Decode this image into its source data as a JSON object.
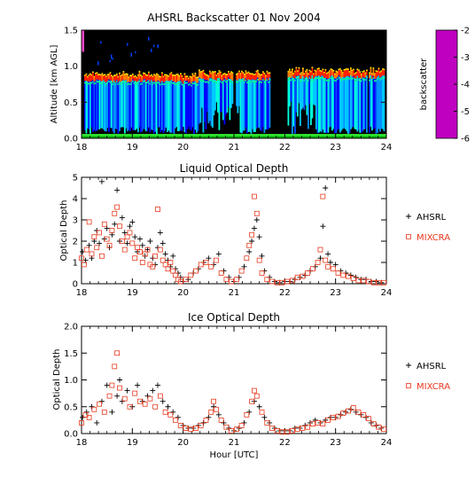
{
  "chart_data": [
    {
      "type": "heatmap",
      "title": "AHSRL Backscatter 01 Nov 2004",
      "xlabel": "",
      "ylabel": "Altitude [km AGL]",
      "xlim": [
        18,
        24
      ],
      "ylim": [
        0,
        1.5
      ],
      "x_ticks": [
        18,
        19,
        20,
        21,
        22,
        23,
        24
      ],
      "y_ticks": [
        0.0,
        0.5,
        1.0,
        1.5
      ],
      "y_tick_labels": [
        "0.0",
        "0.5",
        "1.0",
        "1.5"
      ],
      "colorbar": {
        "label": "backscatter",
        "range": [
          -6,
          -2
        ],
        "ticks": [
          -2,
          -3,
          -4,
          -5,
          -6
        ],
        "colors": [
          "#c000c0",
          "#ff1493",
          "#ff0000",
          "#ff6600",
          "#ffbb00",
          "#ffff00",
          "#80ff00",
          "#00dd00",
          "#00ffcc",
          "#00c8ff",
          "#0080ff",
          "#0000ff",
          "#000070",
          "#000000"
        ]
      },
      "cloud_base_km": [
        {
          "start": 18.05,
          "end": 19.95,
          "base": 0.8
        },
        {
          "start": 19.95,
          "end": 20.3,
          "base": 0.78
        },
        {
          "start": 20.3,
          "end": 22.0,
          "base": 0.82
        },
        {
          "start": 22.0,
          "end": 23.95,
          "base": 0.85
        }
      ]
    },
    {
      "type": "scatter",
      "title": "Liquid Optical Depth",
      "xlabel": "",
      "ylabel": "Optical Depth",
      "xlim": [
        18,
        24
      ],
      "ylim": [
        0,
        5
      ],
      "x_ticks": [
        18,
        19,
        20,
        21,
        22,
        23,
        24
      ],
      "y_ticks": [
        0,
        1,
        2,
        3,
        4,
        5
      ],
      "y_tick_labels": [
        "0",
        "1",
        "2",
        "3",
        "4",
        "5"
      ],
      "legend_position": "right",
      "series": [
        {
          "name": "AHSRL",
          "marker": "plus",
          "color": "#000000",
          "x": [
            18.02,
            18.08,
            18.15,
            18.2,
            18.25,
            18.3,
            18.35,
            18.4,
            18.45,
            18.5,
            18.55,
            18.6,
            18.65,
            18.7,
            18.75,
            18.8,
            18.85,
            18.9,
            18.95,
            19.0,
            19.05,
            19.1,
            19.15,
            19.2,
            19.25,
            19.3,
            19.35,
            19.4,
            19.45,
            19.5,
            19.55,
            19.6,
            19.65,
            19.7,
            19.75,
            19.8,
            19.85,
            19.9,
            19.95,
            20.0,
            20.1,
            20.2,
            20.3,
            20.4,
            20.5,
            20.6,
            20.7,
            20.8,
            20.9,
            21.0,
            21.1,
            21.2,
            21.3,
            21.35,
            21.4,
            21.45,
            21.5,
            21.55,
            21.6,
            21.7,
            21.8,
            21.9,
            22.0,
            22.1,
            22.2,
            22.3,
            22.4,
            22.5,
            22.6,
            22.7,
            22.75,
            22.8,
            22.85,
            22.9,
            23.0,
            23.1,
            23.2,
            23.3,
            23.4,
            23.5,
            23.6,
            23.7,
            23.8,
            23.9
          ],
          "y": [
            1.5,
            1.1,
            1.8,
            1.2,
            2.0,
            2.5,
            1.9,
            4.8,
            2.1,
            2.6,
            1.7,
            2.3,
            2.8,
            4.4,
            2.0,
            3.1,
            2.4,
            1.9,
            2.7,
            2.9,
            2.2,
            1.5,
            2.1,
            1.8,
            1.3,
            1.6,
            2.0,
            1.2,
            0.9,
            1.7,
            2.4,
            1.9,
            1.4,
            1.1,
            0.8,
            1.3,
            0.7,
            0.5,
            0.3,
            0.1,
            0.2,
            0.5,
            0.7,
            1.0,
            1.2,
            0.9,
            1.4,
            0.6,
            0.3,
            0.1,
            0.3,
            0.8,
            1.5,
            2.0,
            2.6,
            3.0,
            2.2,
            1.3,
            0.6,
            0.3,
            0.1,
            0.05,
            0.1,
            0.1,
            0.2,
            0.3,
            0.4,
            0.6,
            0.8,
            1.2,
            2.7,
            4.5,
            1.4,
            1.0,
            0.9,
            0.6,
            0.5,
            0.4,
            0.3,
            0.2,
            0.2,
            0.1,
            0.1,
            0.05
          ]
        },
        {
          "name": "MIXCRA",
          "marker": "square",
          "color": "#e8391d",
          "x": [
            18.0,
            18.05,
            18.1,
            18.15,
            18.2,
            18.25,
            18.3,
            18.35,
            18.4,
            18.45,
            18.5,
            18.55,
            18.6,
            18.65,
            18.7,
            18.75,
            18.8,
            18.85,
            18.9,
            18.95,
            19.0,
            19.05,
            19.1,
            19.15,
            19.2,
            19.25,
            19.3,
            19.35,
            19.4,
            19.45,
            19.5,
            19.55,
            19.6,
            19.65,
            19.7,
            19.75,
            19.8,
            19.85,
            19.9,
            19.95,
            20.05,
            20.15,
            20.25,
            20.35,
            20.45,
            20.55,
            20.65,
            20.75,
            20.85,
            20.95,
            21.05,
            21.15,
            21.25,
            21.3,
            21.35,
            21.4,
            21.45,
            21.5,
            21.55,
            21.65,
            21.75,
            21.85,
            21.95,
            22.05,
            22.15,
            22.25,
            22.35,
            22.45,
            22.55,
            22.65,
            22.7,
            22.75,
            22.8,
            22.85,
            22.95,
            23.05,
            23.15,
            23.25,
            23.35,
            23.45,
            23.55,
            23.65,
            23.75,
            23.85,
            23.95
          ],
          "y": [
            1.2,
            0.9,
            1.6,
            2.9,
            1.4,
            2.2,
            1.7,
            2.4,
            1.3,
            2.8,
            2.1,
            1.8,
            2.5,
            3.3,
            3.6,
            2.7,
            2.0,
            1.6,
            2.2,
            2.4,
            1.9,
            1.2,
            1.7,
            1.5,
            1.0,
            1.4,
            1.6,
            0.9,
            0.8,
            1.3,
            3.5,
            1.6,
            1.1,
            0.9,
            0.7,
            1.0,
            0.6,
            0.4,
            0.2,
            0.1,
            0.2,
            0.4,
            0.6,
            0.9,
            1.0,
            0.8,
            1.1,
            0.5,
            0.2,
            0.1,
            0.2,
            0.6,
            1.2,
            1.8,
            2.3,
            4.1,
            3.3,
            1.1,
            0.5,
            0.2,
            0.1,
            0.05,
            0.05,
            0.1,
            0.15,
            0.3,
            0.35,
            0.5,
            0.7,
            1.0,
            1.6,
            4.1,
            1.1,
            0.8,
            0.7,
            0.5,
            0.4,
            0.35,
            0.25,
            0.15,
            0.15,
            0.1,
            0.05,
            0.05,
            0.05
          ]
        }
      ]
    },
    {
      "type": "scatter",
      "title": "Ice Optical Depth",
      "xlabel": "Hour [UTC]",
      "ylabel": "Optical Depth",
      "xlim": [
        18,
        24
      ],
      "ylim": [
        0,
        2
      ],
      "x_ticks": [
        18,
        19,
        20,
        21,
        22,
        23,
        24
      ],
      "y_ticks": [
        0.0,
        0.5,
        1.0,
        1.5,
        2.0
      ],
      "y_tick_labels": [
        "0.0",
        "0.5",
        "1.0",
        "1.5",
        "2.0"
      ],
      "legend_position": "right",
      "series": [
        {
          "name": "AHSRL",
          "marker": "plus",
          "color": "#000000",
          "x": [
            18.02,
            18.1,
            18.2,
            18.3,
            18.4,
            18.5,
            18.6,
            18.7,
            18.75,
            18.8,
            18.9,
            19.0,
            19.1,
            19.2,
            19.3,
            19.4,
            19.5,
            19.6,
            19.7,
            19.8,
            19.9,
            20.0,
            20.1,
            20.2,
            20.3,
            20.4,
            20.5,
            20.6,
            20.7,
            20.8,
            20.9,
            21.0,
            21.1,
            21.2,
            21.3,
            21.4,
            21.5,
            21.6,
            21.7,
            21.8,
            21.9,
            22.0,
            22.1,
            22.2,
            22.3,
            22.4,
            22.5,
            22.6,
            22.7,
            22.8,
            22.9,
            23.0,
            23.1,
            23.2,
            23.3,
            23.4,
            23.5,
            23.6,
            23.7,
            23.8,
            23.9
          ],
          "y": [
            0.3,
            0.4,
            0.5,
            0.2,
            0.6,
            0.9,
            0.4,
            0.7,
            1.0,
            0.6,
            0.8,
            0.5,
            0.9,
            0.6,
            0.7,
            0.8,
            0.9,
            0.6,
            0.5,
            0.4,
            0.3,
            0.15,
            0.1,
            0.1,
            0.15,
            0.2,
            0.3,
            0.5,
            0.35,
            0.2,
            0.1,
            0.05,
            0.1,
            0.2,
            0.4,
            0.6,
            0.5,
            0.3,
            0.2,
            0.1,
            0.05,
            0.05,
            0.05,
            0.1,
            0.1,
            0.15,
            0.2,
            0.25,
            0.2,
            0.25,
            0.3,
            0.3,
            0.35,
            0.4,
            0.45,
            0.4,
            0.35,
            0.3,
            0.2,
            0.15,
            0.1
          ]
        },
        {
          "name": "MIXCRA",
          "marker": "square",
          "color": "#e8391d",
          "x": [
            18.0,
            18.08,
            18.15,
            18.25,
            18.35,
            18.45,
            18.55,
            18.6,
            18.65,
            18.7,
            18.75,
            18.85,
            18.95,
            19.05,
            19.15,
            19.25,
            19.35,
            19.45,
            19.55,
            19.65,
            19.75,
            19.85,
            19.95,
            20.05,
            20.15,
            20.25,
            20.35,
            20.45,
            20.55,
            20.6,
            20.65,
            20.75,
            20.85,
            20.95,
            21.05,
            21.15,
            21.25,
            21.35,
            21.4,
            21.45,
            21.55,
            21.65,
            21.75,
            21.85,
            21.95,
            22.05,
            22.15,
            22.25,
            22.35,
            22.45,
            22.55,
            22.65,
            22.75,
            22.85,
            22.95,
            23.05,
            23.15,
            23.25,
            23.35,
            23.45,
            23.55,
            23.65,
            23.75,
            23.85,
            23.95
          ],
          "y": [
            0.2,
            0.35,
            0.3,
            0.45,
            0.55,
            0.4,
            0.7,
            0.9,
            1.25,
            1.5,
            0.85,
            0.65,
            0.5,
            0.75,
            0.6,
            0.55,
            0.65,
            0.5,
            0.7,
            0.4,
            0.35,
            0.25,
            0.15,
            0.1,
            0.08,
            0.1,
            0.15,
            0.25,
            0.4,
            0.6,
            0.45,
            0.25,
            0.12,
            0.05,
            0.08,
            0.15,
            0.35,
            0.6,
            0.8,
            0.7,
            0.4,
            0.2,
            0.1,
            0.05,
            0.03,
            0.03,
            0.05,
            0.08,
            0.1,
            0.12,
            0.18,
            0.2,
            0.18,
            0.25,
            0.3,
            0.32,
            0.38,
            0.42,
            0.48,
            0.4,
            0.35,
            0.28,
            0.18,
            0.12,
            0.08
          ]
        }
      ]
    }
  ]
}
